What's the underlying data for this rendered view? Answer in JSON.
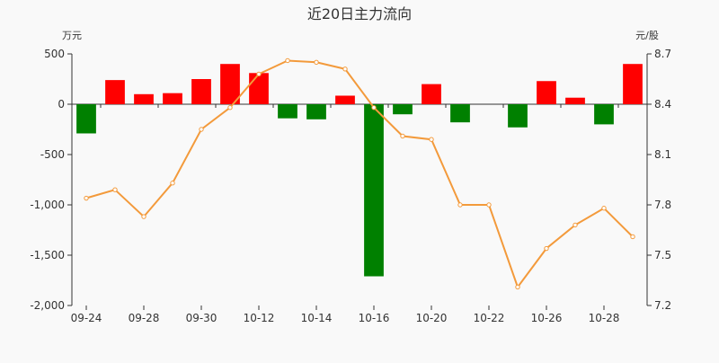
{
  "chart_data": {
    "type": "bar",
    "title": "近20日主力流向",
    "left_axis": {
      "unit": "万元",
      "ylim": [
        -2000,
        500
      ],
      "ticks": [
        500,
        0,
        -500,
        -1000,
        -1500,
        -2000
      ],
      "tick_labels": [
        "500",
        "0",
        "-500",
        "-1,000",
        "-1,500",
        "-2,000"
      ]
    },
    "right_axis": {
      "unit": "元/股",
      "ylim": [
        7.2,
        8.7
      ],
      "ticks": [
        8.7,
        8.4,
        8.1,
        7.8,
        7.5,
        7.2
      ],
      "tick_labels": [
        "8.7",
        "8.4",
        "8.1",
        "7.8",
        "7.5",
        "7.2"
      ]
    },
    "x_tick_labels": [
      "09-24",
      "09-28",
      "09-30",
      "10-12",
      "10-14",
      "10-16",
      "10-20",
      "10-22",
      "10-26",
      "10-28"
    ],
    "x_tick_positions": [
      0,
      2,
      4,
      6,
      8,
      10,
      12,
      14,
      16,
      18
    ],
    "bars": [
      -290,
      240,
      100,
      110,
      250,
      400,
      310,
      -140,
      -150,
      85,
      -1710,
      -100,
      200,
      -180,
      0,
      -230,
      230,
      65,
      -200,
      400
    ],
    "price_line": [
      7.84,
      7.89,
      7.73,
      7.93,
      8.25,
      8.38,
      8.58,
      8.66,
      8.65,
      8.61,
      8.38,
      8.21,
      8.19,
      7.8,
      7.8,
      7.31,
      7.54,
      7.68,
      7.78,
      7.61
    ],
    "colors": {
      "positive": "#ff0000",
      "negative": "#008000",
      "line": "#f39a3b",
      "axis": "#333333",
      "text": "#333333"
    },
    "grid": false
  }
}
